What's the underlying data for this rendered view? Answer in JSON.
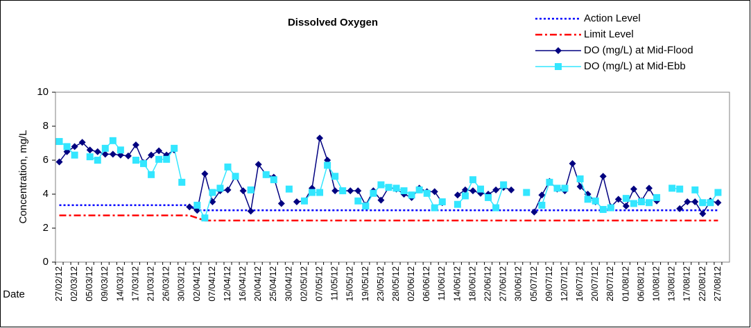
{
  "chart_data": {
    "type": "line",
    "title": "Dissolved Oxygen",
    "y_label": "Concentration, mg/L",
    "x_label": "Date",
    "legend": "top-right",
    "grid": false,
    "ylim": [
      0,
      10
    ],
    "yticks": [
      0,
      2,
      4,
      6,
      8,
      10
    ],
    "categories": [
      "27/02/12",
      null,
      "02/03/12",
      null,
      "05/03/12",
      null,
      "09/03/12",
      null,
      "14/03/12",
      null,
      "17/03/12",
      null,
      "21/03/12",
      null,
      "26/03/12",
      null,
      "30/03/12",
      null,
      "02/04/12",
      null,
      "07/04/12",
      null,
      "12/04/12",
      null,
      "16/04/12",
      null,
      "20/04/12",
      null,
      "25/04/12",
      null,
      "30/04/12",
      null,
      "02/05/12",
      null,
      "07/05/12",
      null,
      "11/05/12",
      null,
      "15/05/12",
      null,
      "19/05/12",
      null,
      "23/05/12",
      null,
      "28/05/12",
      null,
      "02/06/12",
      null,
      "06/06/12",
      null,
      "11/06/12",
      null,
      "14/06/12",
      null,
      "18/06/12",
      null,
      "22/06/12",
      null,
      "27/06/12",
      null,
      "30/06/12",
      null,
      "05/07/12",
      null,
      "09/07/12",
      null,
      "12/07/12",
      null,
      "16/07/12",
      null,
      "20/07/12",
      null,
      "28/07/12",
      null,
      "01/08/12",
      null,
      "06/08/12",
      null,
      "10/08/12",
      null,
      "13/08/12",
      null,
      "17/08/12",
      null,
      "22/08/12",
      null,
      "27/08/12",
      null
    ],
    "series": [
      {
        "name": "Action Level",
        "color": "#0000ff",
        "dash": "dotted",
        "marker": "none",
        "values": [
          3.35,
          3.35,
          3.35,
          3.35,
          3.35,
          3.35,
          3.35,
          3.35,
          3.35,
          3.35,
          3.35,
          3.35,
          3.35,
          3.35,
          3.35,
          3.35,
          3.35,
          3.35,
          3.05,
          3.05,
          3.05,
          3.05,
          3.05,
          3.05,
          3.05,
          3.05,
          3.05,
          3.05,
          3.05,
          3.05,
          3.05,
          3.05,
          3.05,
          3.05,
          3.05,
          3.05,
          3.05,
          3.05,
          3.05,
          3.05,
          3.05,
          3.05,
          3.05,
          3.05,
          3.05,
          3.05,
          3.05,
          3.05,
          3.05,
          3.05,
          3.05,
          3.05,
          3.05,
          3.05,
          3.05,
          3.05,
          3.05,
          3.05,
          3.05,
          3.05,
          3.05,
          3.05,
          3.05,
          3.05,
          3.05,
          3.05,
          3.05,
          3.05,
          3.05,
          3.05,
          3.05,
          3.05,
          3.05,
          3.05,
          3.05,
          3.05,
          3.05,
          3.05,
          3.05,
          3.05,
          3.05,
          3.05,
          3.05,
          3.05,
          3.05,
          3.05,
          3.05,
          null
        ]
      },
      {
        "name": "Limit Level",
        "color": "#ff0000",
        "dash": "dashdot",
        "marker": "none",
        "values": [
          2.75,
          2.75,
          2.75,
          2.75,
          2.75,
          2.75,
          2.75,
          2.75,
          2.75,
          2.75,
          2.75,
          2.75,
          2.75,
          2.75,
          2.75,
          2.75,
          2.75,
          2.75,
          2.6,
          2.45,
          2.45,
          2.45,
          2.45,
          2.45,
          2.45,
          2.45,
          2.45,
          2.45,
          2.45,
          2.45,
          2.45,
          2.45,
          2.45,
          2.45,
          2.45,
          2.45,
          2.45,
          2.45,
          2.45,
          2.45,
          2.45,
          2.45,
          2.45,
          2.45,
          2.45,
          2.45,
          2.45,
          2.45,
          2.45,
          2.45,
          2.45,
          2.45,
          2.45,
          2.45,
          2.45,
          2.45,
          2.45,
          2.45,
          2.45,
          2.45,
          2.45,
          2.45,
          2.45,
          2.45,
          2.45,
          2.45,
          2.45,
          2.45,
          2.45,
          2.45,
          2.45,
          2.45,
          2.45,
          2.45,
          2.45,
          2.45,
          2.45,
          2.45,
          2.45,
          2.45,
          2.45,
          2.45,
          2.45,
          2.45,
          2.45,
          2.45,
          2.45,
          null
        ]
      },
      {
        "name": "DO (mg/L) at Mid-Flood",
        "color": "#000080",
        "dash": "solid",
        "marker": "diamond",
        "values": [
          5.9,
          6.5,
          6.8,
          7.05,
          6.6,
          6.5,
          6.35,
          6.35,
          6.3,
          6.25,
          6.9,
          5.85,
          6.3,
          6.55,
          6.3,
          6.6,
          null,
          3.25,
          3.05,
          5.2,
          3.55,
          4.2,
          4.25,
          5.05,
          4.2,
          3.0,
          5.75,
          5.15,
          5.0,
          3.45,
          null,
          3.55,
          3.6,
          4.35,
          7.3,
          6.0,
          4.2,
          4.2,
          4.2,
          4.2,
          3.35,
          4.2,
          3.65,
          4.4,
          4.3,
          4.0,
          3.8,
          4.35,
          4.15,
          4.15,
          3.5,
          null,
          3.95,
          4.25,
          4.2,
          4.05,
          4.0,
          4.25,
          4.4,
          4.25,
          null,
          null,
          2.95,
          3.95,
          4.75,
          4.3,
          4.2,
          5.8,
          4.45,
          4.0,
          3.55,
          5.05,
          3.25,
          3.7,
          3.3,
          4.3,
          3.6,
          4.35,
          3.6,
          null,
          null,
          3.15,
          3.55,
          3.55,
          2.85,
          3.6,
          3.5,
          null
        ]
      },
      {
        "name": "DO (mg/L) at Mid-Ebb",
        "color": "#33e6ff",
        "dash": "solid",
        "marker": "square",
        "values": [
          7.1,
          6.8,
          6.3,
          null,
          6.2,
          6.0,
          6.7,
          7.15,
          6.6,
          null,
          6.0,
          5.8,
          5.15,
          6.05,
          6.05,
          6.7,
          4.7,
          null,
          3.35,
          2.6,
          4.1,
          4.35,
          5.6,
          5.05,
          null,
          4.25,
          null,
          5.15,
          4.85,
          null,
          4.3,
          null,
          3.6,
          4.1,
          4.1,
          5.7,
          5.05,
          4.2,
          null,
          3.6,
          3.3,
          4.05,
          4.55,
          4.4,
          4.35,
          4.2,
          3.95,
          4.25,
          4.05,
          3.2,
          3.55,
          null,
          3.4,
          3.9,
          4.85,
          4.3,
          3.8,
          3.2,
          4.55,
          null,
          null,
          4.1,
          null,
          3.35,
          4.7,
          4.35,
          4.35,
          null,
          4.9,
          3.7,
          3.6,
          3.1,
          3.2,
          null,
          3.75,
          3.45,
          3.55,
          3.5,
          3.8,
          null,
          4.35,
          4.3,
          null,
          4.25,
          3.5,
          3.5,
          4.1,
          null
        ]
      }
    ]
  }
}
